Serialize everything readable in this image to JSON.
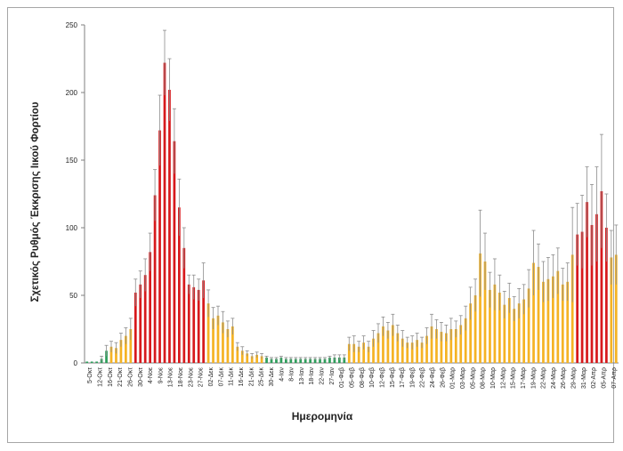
{
  "chart_data": {
    "type": "bar",
    "xlabel": "Ημερομηνία",
    "ylabel": "Σχετικός Ρυθμός Έκκρισης Ιικού Φορτίου",
    "ylim": [
      0,
      250
    ],
    "yticks": [
      0,
      50,
      100,
      150,
      200,
      250
    ],
    "grid": false,
    "legend": "none",
    "colors": {
      "green": "#2e9e5b",
      "orange": "#f5b324",
      "red": "#d7191c",
      "error_bar": "#8c8c8c",
      "axis": "#7f7f7f"
    },
    "tick_labels": [
      "5-Οκτ",
      "12-Οκτ",
      "16-Οκτ",
      "21-Οκτ",
      "26-Οκτ",
      "30-Οκτ",
      "4-Νοε",
      "9-Νοε",
      "13-Νοε",
      "18-Νοε",
      "23-Νοε",
      "27-Νοε",
      "02-Δεκ",
      "07-Δεκ",
      "11-Δεκ",
      "16-Δεκ",
      "21-Δεκ",
      "25-Δεκ",
      "30-Δεκ",
      "4-Ιαν",
      "8-Ιαν",
      "13-Ιαν",
      "18-Ιαν",
      "22-Ιαν",
      "27-Ιαν",
      "01-Φεβ",
      "05-Φεβ",
      "08-Φεβ",
      "10-Φεβ",
      "12-Φεβ",
      "15-Φεβ",
      "17-Φεβ",
      "19-Φεβ",
      "22-Φεβ",
      "24-Φεβ",
      "26-Φεβ",
      "01-Μαρ",
      "03-Μαρ",
      "05-Μαρ",
      "08-Μαρ",
      "10-Μαρ",
      "12-Μαρ",
      "15-Μαρ",
      "17-Μαρ",
      "19-Μαρ",
      "22-Μαρ",
      "24-Μαρ",
      "26-Μαρ",
      "29-Μαρ",
      "31-Μαρ",
      "02-Απρ",
      "05-Απρ",
      "07-Απρ"
    ],
    "values": [
      1,
      1,
      1,
      3,
      9,
      12,
      11,
      17,
      20,
      25,
      52,
      58,
      65,
      82,
      124,
      172,
      222,
      202,
      164,
      115,
      85,
      58,
      56,
      54,
      61,
      44,
      33,
      35,
      30,
      25,
      27,
      12,
      9,
      7,
      5,
      6,
      5,
      4,
      3,
      3,
      4,
      3,
      3,
      3,
      3,
      3,
      3,
      3,
      3,
      3,
      4,
      4,
      4,
      4,
      14,
      14,
      12,
      15,
      12,
      18,
      22,
      27,
      24,
      28,
      22,
      18,
      15,
      15,
      17,
      15,
      20,
      27,
      25,
      23,
      22,
      25,
      25,
      28,
      33,
      44,
      50,
      81,
      75,
      54,
      58,
      52,
      43,
      48,
      40,
      44,
      47,
      55,
      74,
      71,
      60,
      62,
      64,
      68,
      58,
      60,
      80,
      95,
      97,
      119,
      102,
      110,
      127,
      100,
      78,
      80
    ],
    "errors": [
      0,
      0,
      0,
      2,
      4,
      4,
      4,
      5,
      6,
      8,
      10,
      10,
      12,
      14,
      19,
      26,
      24,
      23,
      24,
      21,
      15,
      7,
      9,
      8,
      13,
      10,
      8,
      7,
      8,
      6,
      6,
      3,
      3,
      2,
      2,
      2,
      2,
      1,
      1,
      1,
      1,
      1,
      1,
      1,
      1,
      1,
      1,
      1,
      1,
      1,
      1,
      2,
      2,
      2,
      5,
      6,
      4,
      5,
      4,
      6,
      7,
      7,
      6,
      8,
      6,
      6,
      4,
      5,
      5,
      4,
      6,
      9,
      7,
      7,
      6,
      8,
      6,
      7,
      9,
      12,
      12,
      32,
      21,
      13,
      19,
      13,
      10,
      11,
      9,
      11,
      11,
      14,
      24,
      17,
      15,
      16,
      16,
      17,
      12,
      14,
      35,
      23,
      27,
      26,
      30,
      35,
      42,
      25,
      20,
      22
    ],
    "colors_per_bar": [
      "g",
      "g",
      "g",
      "g",
      "g",
      "o",
      "o",
      "o",
      "o",
      "o",
      "r",
      "r",
      "r",
      "r",
      "r",
      "r",
      "r",
      "r",
      "r",
      "r",
      "r",
      "r",
      "r",
      "r",
      "r",
      "o",
      "o",
      "o",
      "o",
      "o",
      "o",
      "o",
      "o",
      "o",
      "o",
      "o",
      "o",
      "g",
      "g",
      "g",
      "g",
      "g",
      "g",
      "g",
      "g",
      "g",
      "g",
      "g",
      "g",
      "g",
      "g",
      "g",
      "g",
      "g",
      "o",
      "o",
      "o",
      "o",
      "o",
      "o",
      "o",
      "o",
      "o",
      "o",
      "o",
      "o",
      "o",
      "o",
      "o",
      "o",
      "o",
      "o",
      "o",
      "o",
      "o",
      "o",
      "o",
      "o",
      "o",
      "o",
      "o",
      "o",
      "o",
      "o",
      "o",
      "o",
      "o",
      "o",
      "o",
      "o",
      "o",
      "o",
      "o",
      "o",
      "o",
      "o",
      "o",
      "o",
      "o",
      "o",
      "o",
      "r",
      "r",
      "r",
      "r",
      "r",
      "r",
      "r",
      "o",
      "o"
    ]
  }
}
